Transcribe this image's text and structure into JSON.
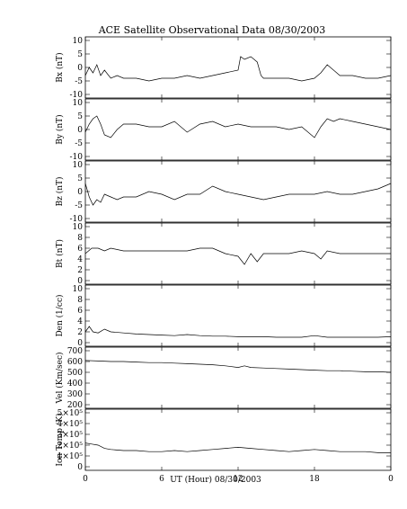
{
  "title": "ACE Satellite Observational Data   08/30/2003",
  "xlabel": "UT (Hour)   08/30/2003",
  "chart_data": {
    "type": "line",
    "x_ticks": [
      "0",
      "6",
      "12",
      "18",
      "0"
    ],
    "x_range": [
      0,
      24
    ],
    "panels": [
      {
        "name": "bx",
        "ylabel": "Bx (nT)",
        "ylim": [
          -10,
          10
        ],
        "yticks": [
          -10,
          -5,
          0,
          5,
          10
        ],
        "ytick_labels": [
          "-10",
          "-5",
          "0",
          "5",
          "10"
        ],
        "x": [
          0,
          0.3,
          0.6,
          0.9,
          1.2,
          1.5,
          2,
          2.5,
          3,
          4,
          5,
          6,
          7,
          8,
          9,
          10,
          11,
          12,
          12.2,
          12.5,
          13,
          13.5,
          13.8,
          14,
          14.5,
          15,
          16,
          17,
          18,
          18.5,
          19,
          19.5,
          20,
          21,
          22,
          23,
          24
        ],
        "y": [
          -3,
          0,
          -2,
          1,
          -3,
          -1,
          -4,
          -3,
          -4,
          -4,
          -5,
          -4,
          -4,
          -3,
          -4,
          -3,
          -2,
          -1,
          4,
          3,
          4,
          2,
          -3,
          -4,
          -4,
          -4,
          -4,
          -5,
          -4,
          -2,
          1,
          -1,
          -3,
          -3,
          -4,
          -4,
          -3
        ],
        "grid": false
      },
      {
        "name": "by",
        "ylabel": "By (nT)",
        "ylim": [
          -10,
          10
        ],
        "yticks": [
          -10,
          -5,
          0,
          5,
          10
        ],
        "ytick_labels": [
          "-10",
          "-5",
          "0",
          "5",
          "10"
        ],
        "x": [
          0,
          0.3,
          0.6,
          0.9,
          1.2,
          1.5,
          2,
          2.5,
          3,
          4,
          5,
          6,
          7,
          8,
          9,
          10,
          11,
          12,
          13,
          14,
          15,
          16,
          17,
          17.5,
          18,
          18.5,
          19,
          19.5,
          20,
          21,
          22,
          23,
          24
        ],
        "y": [
          -1,
          2,
          4,
          5,
          2,
          -2,
          -3,
          0,
          2,
          2,
          1,
          1,
          3,
          -1,
          2,
          3,
          1,
          2,
          1,
          1,
          1,
          0,
          1,
          -1,
          -3,
          1,
          4,
          3,
          4,
          3,
          2,
          1,
          0
        ],
        "grid": false
      },
      {
        "name": "bz",
        "ylabel": "Bz (nT)",
        "ylim": [
          -10,
          10
        ],
        "yticks": [
          -10,
          -5,
          0,
          5,
          10
        ],
        "ytick_labels": [
          "-10",
          "-5",
          "0",
          "5",
          "10"
        ],
        "x": [
          0,
          0.3,
          0.6,
          0.9,
          1.2,
          1.5,
          2,
          2.5,
          3,
          4,
          5,
          6,
          7,
          8,
          9,
          10,
          11,
          12,
          13,
          14,
          15,
          16,
          17,
          18,
          19,
          20,
          21,
          22,
          23,
          24
        ],
        "y": [
          3,
          -2,
          -5,
          -3,
          -4,
          -1,
          -2,
          -3,
          -2,
          -2,
          0,
          -1,
          -3,
          -1,
          -1,
          2,
          0,
          -1,
          -2,
          -3,
          -2,
          -1,
          -1,
          -1,
          0,
          -1,
          -1,
          0,
          1,
          3
        ],
        "grid": false
      },
      {
        "name": "bt",
        "ylabel": "Bt (nT)",
        "ylim": [
          0,
          10
        ],
        "yticks": [
          0,
          2,
          4,
          6,
          8,
          10
        ],
        "ytick_labels": [
          "0",
          "2",
          "4",
          "6",
          "8",
          "10"
        ],
        "x": [
          0,
          0.5,
          1,
          1.5,
          2,
          3,
          4,
          5,
          6,
          7,
          8,
          9,
          10,
          11,
          12,
          12.5,
          13,
          13.5,
          14,
          15,
          16,
          17,
          18,
          18.5,
          19,
          20,
          21,
          22,
          23,
          24
        ],
        "y": [
          5,
          6,
          6,
          5.5,
          6,
          5.5,
          5.5,
          5.5,
          5.5,
          5.5,
          5.5,
          6,
          6,
          5,
          4.5,
          3,
          5,
          3.5,
          5,
          5,
          5,
          5.5,
          5,
          4,
          5.5,
          5,
          5,
          5,
          5,
          5
        ],
        "grid": false
      },
      {
        "name": "den",
        "ylabel": "Den (1/cc)",
        "ylim": [
          0,
          10
        ],
        "yticks": [
          0,
          2,
          4,
          6,
          8,
          10
        ],
        "ytick_labels": [
          "0",
          "2",
          "4",
          "6",
          "8",
          "10"
        ],
        "x": [
          0,
          0.3,
          0.6,
          1,
          1.5,
          2,
          3,
          4,
          5,
          6,
          7,
          8,
          9,
          10,
          11,
          12,
          13,
          14,
          15,
          16,
          17,
          18,
          19,
          20,
          21,
          22,
          23,
          24
        ],
        "y": [
          2,
          3,
          2,
          1.8,
          2.5,
          2,
          1.8,
          1.6,
          1.5,
          1.4,
          1.3,
          1.5,
          1.3,
          1.2,
          1.2,
          1.1,
          1.1,
          1.1,
          1,
          1,
          1,
          1.3,
          1,
          1,
          1,
          1,
          1,
          1.1
        ],
        "grid": false
      },
      {
        "name": "vel",
        "ylabel": "Vel (Km/sec)",
        "ylim": [
          200,
          700
        ],
        "yticks": [
          200,
          300,
          400,
          500,
          600,
          700
        ],
        "ytick_labels": [
          "200",
          "300",
          "400",
          "500",
          "600",
          "700"
        ],
        "x": [
          0,
          1,
          2,
          3,
          4,
          5,
          6,
          7,
          8,
          9,
          10,
          11,
          12,
          12.5,
          13,
          14,
          15,
          16,
          17,
          18,
          19,
          20,
          21,
          22,
          23,
          24
        ],
        "y": [
          610,
          605,
          600,
          600,
          595,
          590,
          590,
          585,
          580,
          575,
          570,
          560,
          545,
          560,
          545,
          540,
          535,
          530,
          525,
          520,
          515,
          515,
          510,
          505,
          505,
          500
        ],
        "grid": false
      },
      {
        "name": "temp",
        "ylabel": "Ion Temp (K)",
        "ylim": [
          0,
          500000
        ],
        "yticks": [
          0,
          100000,
          200000,
          300000,
          400000,
          500000
        ],
        "ytick_labels": [
          "0",
          "1×10⁵",
          "2×10⁵",
          "3×10⁵",
          "4×10⁵",
          "5×10⁵"
        ],
        "x": [
          0,
          0.5,
          1,
          1.5,
          2,
          3,
          4,
          5,
          6,
          7,
          8,
          9,
          10,
          11,
          12,
          13,
          14,
          15,
          16,
          17,
          18,
          19,
          20,
          21,
          22,
          23,
          24
        ],
        "y": [
          220000,
          210000,
          200000,
          170000,
          160000,
          150000,
          150000,
          140000,
          140000,
          150000,
          140000,
          150000,
          160000,
          170000,
          180000,
          170000,
          160000,
          150000,
          140000,
          150000,
          160000,
          150000,
          140000,
          140000,
          140000,
          130000,
          130000
        ],
        "grid": false
      }
    ]
  }
}
